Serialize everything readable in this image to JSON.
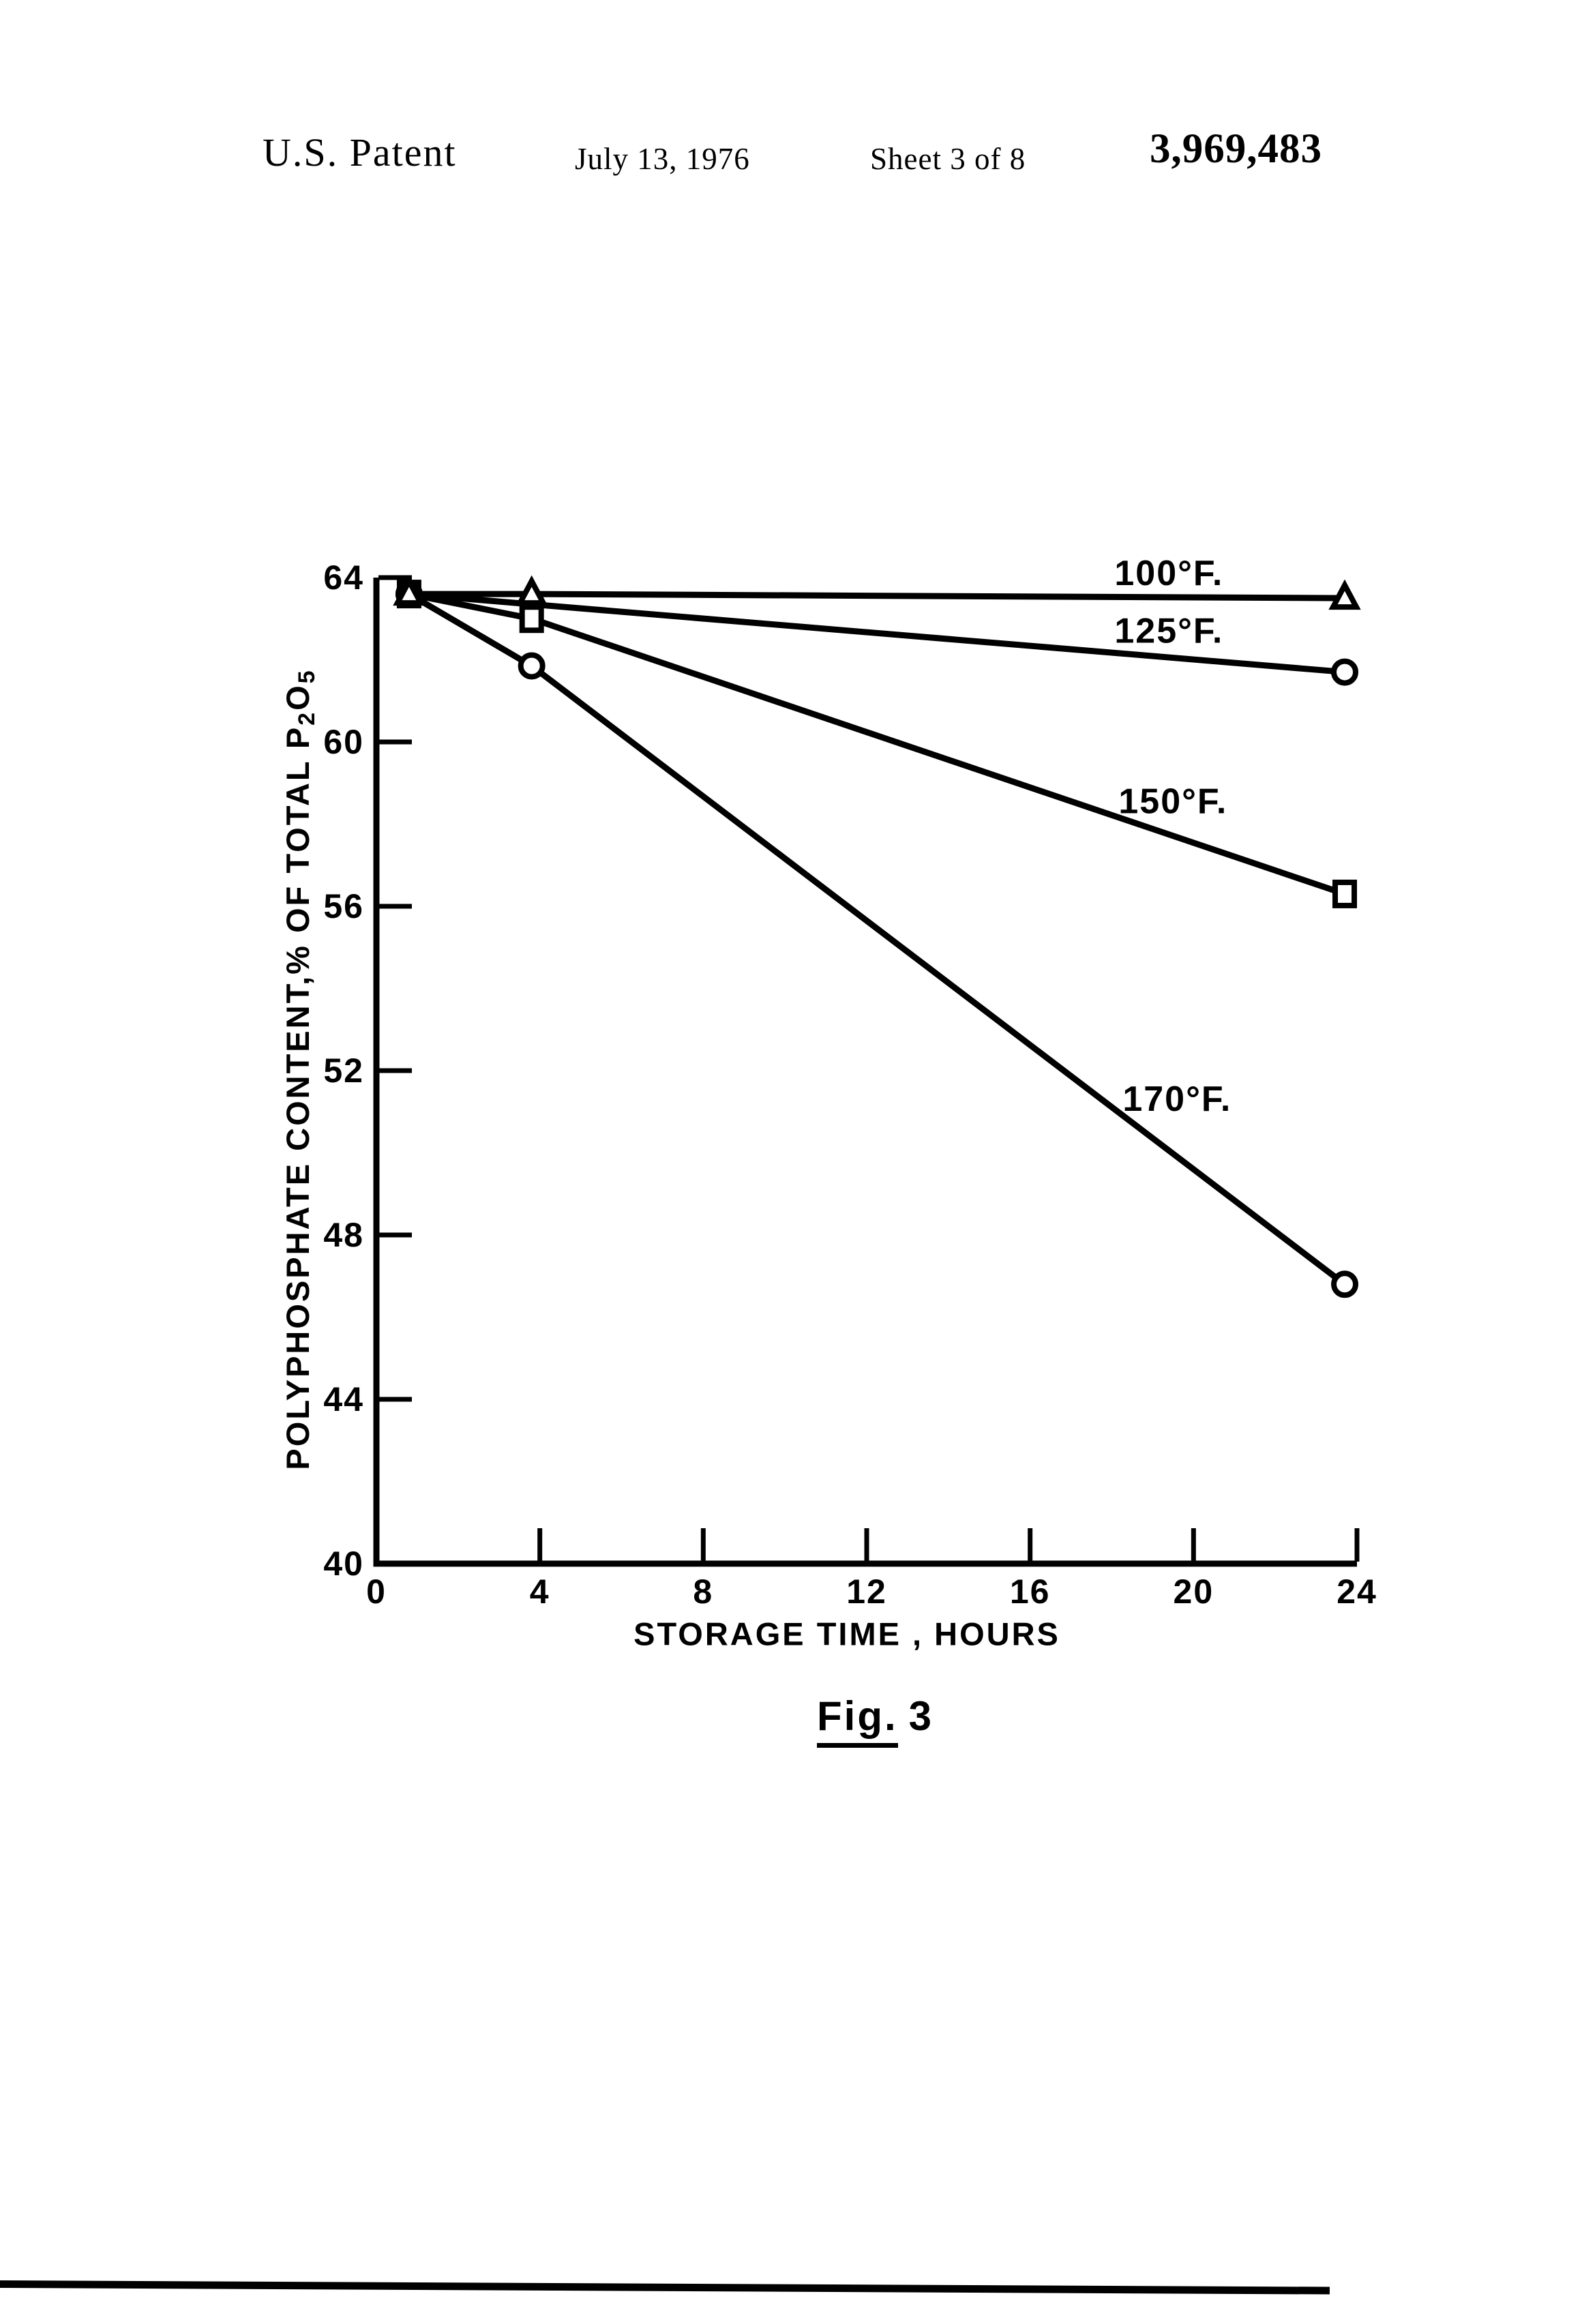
{
  "header": {
    "title": "U.S. Patent",
    "date": "July 13, 1976",
    "sheet": "Sheet 3 of 8",
    "patent_number": "3,969,483"
  },
  "caption": {
    "text": "Fig. 3",
    "underlined_part": "Fig.",
    "rest": "3"
  },
  "colors": {
    "ink": "#000000",
    "paper": "#ffffff"
  },
  "chart_data": {
    "type": "line",
    "title": "",
    "xlabel": "STORAGE TIME , HOURS",
    "ylabel": "POLYPHOSPHATE CONTENT, % OF TOTAL P2O5",
    "ylabel_parts": [
      {
        "t": "POLYPHOSPHATE CONTENT,% OF TOTAL P",
        "sub": false
      },
      {
        "t": "2",
        "sub": true
      },
      {
        "t": "O",
        "sub": false
      },
      {
        "t": "5",
        "sub": true
      }
    ],
    "xlim": [
      0,
      24
    ],
    "ylim": [
      40,
      64
    ],
    "xticks": [
      0,
      4,
      8,
      12,
      16,
      20,
      24
    ],
    "yticks": [
      40,
      44,
      48,
      52,
      56,
      60,
      64
    ],
    "grid": false,
    "legend_position": "inline-labels-above-lines",
    "series": [
      {
        "key": "100f",
        "name": "100°F.",
        "marker": "triangle",
        "points": [
          [
            0.8,
            63.6
          ],
          [
            3.8,
            63.6
          ],
          [
            23.7,
            63.5
          ]
        ],
        "label_x": 19.4,
        "label_y": 64.1
      },
      {
        "key": "125f",
        "name": "125°F.",
        "marker": "circle",
        "points": [
          [
            0.8,
            63.6
          ],
          [
            23.7,
            61.7
          ]
        ],
        "label_x": 19.4,
        "label_y": 62.7
      },
      {
        "key": "150f",
        "name": "150°F.",
        "marker": "square",
        "points": [
          [
            0.8,
            63.6
          ],
          [
            3.8,
            63.0
          ],
          [
            23.7,
            56.3
          ]
        ],
        "label_x": 19.5,
        "label_y": 58.55
      },
      {
        "key": "170f",
        "name": "170°F.",
        "marker": "circle",
        "points": [
          [
            0.8,
            63.6
          ],
          [
            3.8,
            61.85
          ],
          [
            23.7,
            46.8
          ]
        ],
        "label_x": 19.6,
        "label_y": 51.3
      }
    ]
  }
}
